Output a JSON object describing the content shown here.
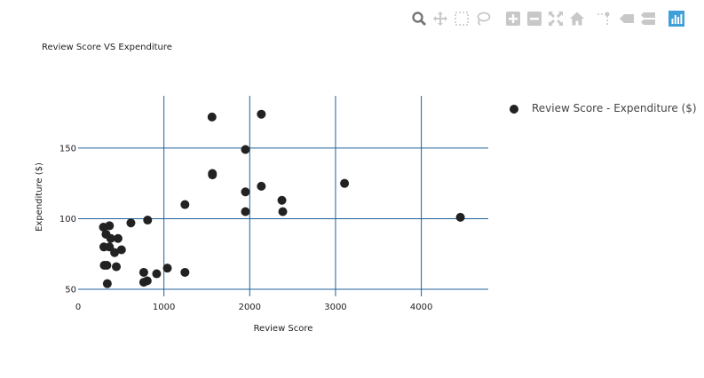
{
  "modebar": {
    "buttons": [
      {
        "name": "zoom-icon",
        "active": true
      },
      {
        "name": "pan-icon"
      },
      {
        "name": "box-select-icon"
      },
      {
        "name": "lasso-select-icon"
      },
      {
        "name": "zoom-in-icon"
      },
      {
        "name": "zoom-out-icon"
      },
      {
        "name": "autoscale-icon"
      },
      {
        "name": "reset-axes-icon"
      },
      {
        "name": "spike-lines-icon"
      },
      {
        "name": "hover-closest-icon"
      },
      {
        "name": "hover-compare-icon"
      },
      {
        "name": "plotly-logo-icon"
      }
    ],
    "colors": {
      "icon": "#c8c8c8",
      "active": "#777777",
      "logo": "#3f9fd8"
    }
  },
  "chart_data": {
    "type": "scatter",
    "title": "Review Score VS Expenditure",
    "xlabel": "Review Score",
    "ylabel": "Expenditure ($)",
    "xlim": [
      0,
      4780
    ],
    "ylim": [
      45,
      187
    ],
    "x_ticks": [
      0,
      1000,
      2000,
      3000,
      4000
    ],
    "y_ticks": [
      50,
      100,
      150
    ],
    "grid": true,
    "grid_color": "#1f5f9c",
    "marker_color": "#222222",
    "legend_position": "top-right",
    "series": [
      {
        "name": "Review Score - Expenditure ($)",
        "points": [
          [
            1560,
            172
          ],
          [
            2135,
            174
          ],
          [
            1950,
            149
          ],
          [
            1565,
            132
          ],
          [
            1565,
            131
          ],
          [
            3105,
            125
          ],
          [
            2135,
            123
          ],
          [
            1950,
            119
          ],
          [
            2375,
            113
          ],
          [
            1245,
            110
          ],
          [
            1950,
            105
          ],
          [
            2385,
            105
          ],
          [
            4455,
            101
          ],
          [
            810,
            99
          ],
          [
            615,
            97
          ],
          [
            295,
            94
          ],
          [
            365,
            95
          ],
          [
            325,
            89
          ],
          [
            380,
            86
          ],
          [
            465,
            86
          ],
          [
            300,
            80
          ],
          [
            365,
            80
          ],
          [
            505,
            78
          ],
          [
            425,
            76
          ],
          [
            305,
            67
          ],
          [
            335,
            67
          ],
          [
            445,
            66
          ],
          [
            1040,
            65
          ],
          [
            765,
            62
          ],
          [
            1245,
            62
          ],
          [
            915,
            61
          ],
          [
            765,
            55
          ],
          [
            805,
            56
          ],
          [
            340,
            54
          ]
        ]
      }
    ]
  }
}
